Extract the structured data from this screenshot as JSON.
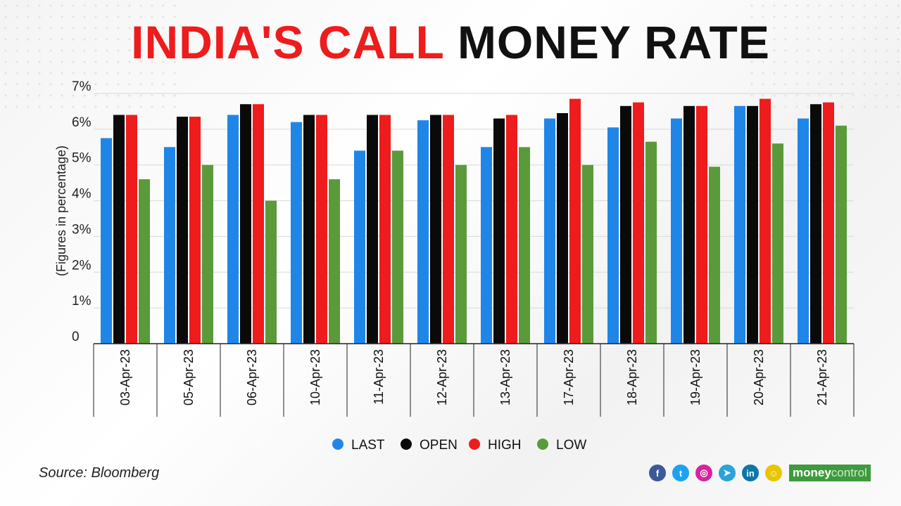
{
  "title": {
    "part1": "INDIA'S CALL",
    "part2": "MONEY RATE"
  },
  "chart_data": {
    "type": "bar",
    "ylabel": "(Figures in percentage)",
    "ylim": [
      0,
      7
    ],
    "yticks": [
      "0",
      "1%",
      "2%",
      "3%",
      "4%",
      "5%",
      "6%",
      "7%"
    ],
    "grid": true,
    "legend_position": "bottom",
    "categories": [
      "03-Apr-23",
      "05-Apr-23",
      "06-Apr-23",
      "10-Apr-23",
      "11-Apr-23",
      "12-Apr-23",
      "13-Apr-23",
      "17-Apr-23",
      "18-Apr-23",
      "19-Apr-23",
      "20-Apr-23",
      "21-Apr-23"
    ],
    "series": [
      {
        "name": "LAST",
        "color": "#1f86e8",
        "values": [
          5.75,
          5.5,
          6.4,
          6.2,
          5.4,
          6.25,
          5.5,
          6.3,
          6.05,
          6.3,
          6.65,
          6.3
        ]
      },
      {
        "name": "OPEN",
        "color": "#0a0a0a",
        "values": [
          6.4,
          6.35,
          6.7,
          6.4,
          6.4,
          6.4,
          6.3,
          6.45,
          6.65,
          6.65,
          6.65,
          6.7
        ]
      },
      {
        "name": "HIGH",
        "color": "#ee1c1c",
        "values": [
          6.4,
          6.35,
          6.7,
          6.4,
          6.4,
          6.4,
          6.4,
          6.85,
          6.75,
          6.65,
          6.85,
          6.75
        ]
      },
      {
        "name": "LOW",
        "color": "#5a9a3a",
        "values": [
          4.6,
          5.0,
          4.0,
          4.6,
          5.4,
          5.0,
          5.5,
          5.0,
          5.65,
          4.95,
          5.6,
          6.1
        ]
      }
    ]
  },
  "source": "Source: Bloomberg",
  "footer": {
    "social": [
      {
        "name": "facebook-icon",
        "glyph": "f",
        "color": "#3b5998"
      },
      {
        "name": "twitter-icon",
        "glyph": "t",
        "color": "#1da1f2"
      },
      {
        "name": "instagram-icon",
        "glyph": "◎",
        "color": "#d6249f"
      },
      {
        "name": "telegram-icon",
        "glyph": "➤",
        "color": "#2aa3d8"
      },
      {
        "name": "linkedin-icon",
        "glyph": "in",
        "color": "#0e76a8"
      },
      {
        "name": "snapchat-icon",
        "glyph": "☺",
        "color": "#e8c500"
      }
    ],
    "brand_part1": "money",
    "brand_part2": "control"
  }
}
